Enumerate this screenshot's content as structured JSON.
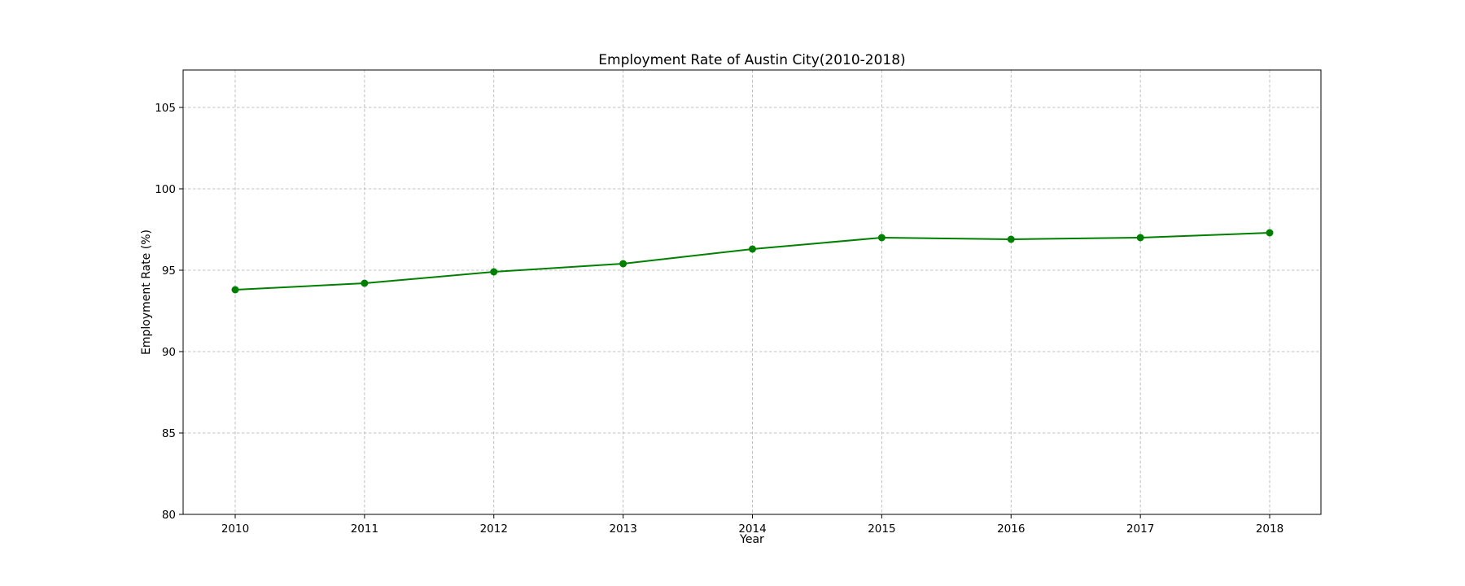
{
  "chart_data": {
    "type": "line",
    "title": "Employment Rate of Austin City(2010-2018)",
    "xlabel": "Year",
    "ylabel": "Employment Rate (%)",
    "categories": [
      "2010",
      "2011",
      "2012",
      "2013",
      "2014",
      "2015",
      "2016",
      "2017",
      "2018"
    ],
    "series": [
      {
        "name": "Employment Rate",
        "values": [
          93.8,
          94.2,
          94.9,
          95.4,
          96.3,
          97.0,
          96.9,
          97.0,
          97.3
        ]
      }
    ],
    "ylim": [
      80,
      107.3
    ],
    "yticks": [
      80,
      85,
      90,
      95,
      100,
      105
    ],
    "ytick_labels": [
      "80",
      "85",
      "90",
      "95",
      "100",
      "105"
    ],
    "grid": true,
    "line_color": "#008000",
    "marker": "circle"
  }
}
